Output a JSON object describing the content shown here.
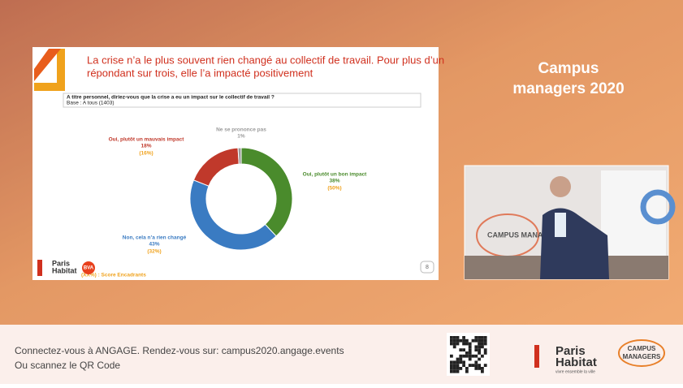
{
  "slide": {
    "title_lines": [
      "La crise n’a le plus souvent rien changé au collectif de travail. Pour plus d’un",
      "répondant sur trois, elle l’a impacté positivement"
    ],
    "question": "A titre personnel, diriez-vous que la crise a eu un impact sur le collectif de travail ?",
    "base": "Base : A tous (1403)",
    "note": "(XX%) : Score Encadrants",
    "page": "8",
    "logo_top": "Paris",
    "logo_bottom": "Habitat",
    "logo_bva": "BVA"
  },
  "chart_data": {
    "type": "donut",
    "categories": [
      "Oui, plutôt un bon impact",
      "Non, cela n’a rien changé",
      "Oui, plutôt un mauvais impact",
      "Ne se prononce pas"
    ],
    "values": [
      38,
      43,
      18,
      1
    ],
    "value_labels": [
      "38%",
      "43%",
      "18%",
      "1%"
    ],
    "score_labels": [
      "(50%)",
      "(32%)",
      "(16%)",
      ""
    ],
    "colors": [
      "#4a8b2c",
      "#3a7bc2",
      "#c0392b",
      "#9a9a9a"
    ]
  },
  "event": {
    "title_line1": "Campus",
    "title_line2": "managers 2020",
    "video_text": "CAMPUS MANAGE"
  },
  "footer": {
    "line1": "Connectez-vous à ANGAGE. Rendez-vous sur: campus2020.angage.events",
    "line2": "Ou scannez le QR Code",
    "logo_top": "Paris",
    "logo_bottom": "Habitat",
    "logo_tagline": "vivre ensemble la ville",
    "campus_top": "CAMPUS",
    "campus_bottom": "MANAGERS"
  }
}
